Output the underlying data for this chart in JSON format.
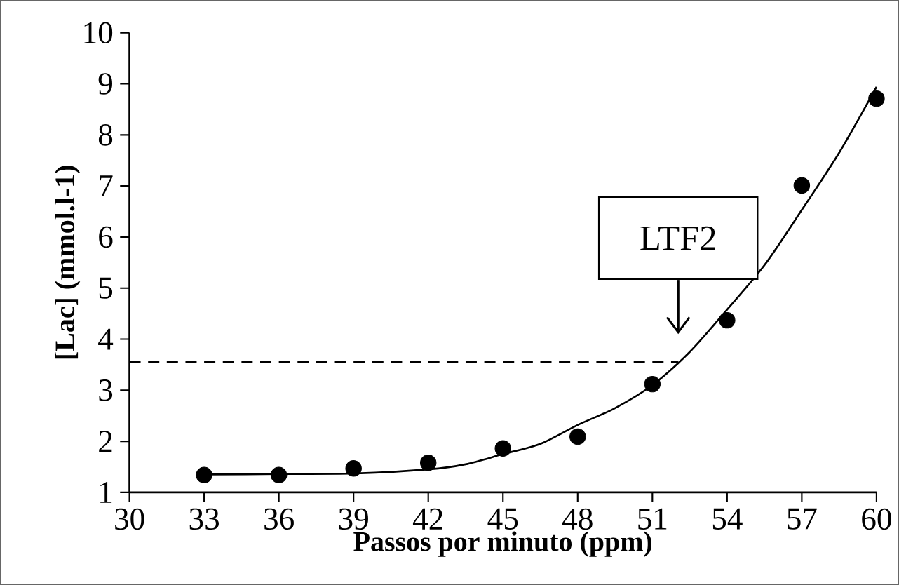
{
  "chart_data": {
    "type": "scatter",
    "xlabel": "Passos por minuto (ppm)",
    "ylabel": "[Lac] (mmol.l-1)",
    "xlim": [
      30,
      60
    ],
    "ylim": [
      1,
      10
    ],
    "xticks": [
      30,
      33,
      36,
      39,
      42,
      45,
      48,
      51,
      54,
      57,
      60
    ],
    "yticks": [
      1,
      2,
      3,
      4,
      5,
      6,
      7,
      8,
      9,
      10
    ],
    "grid": false,
    "marker": "circle",
    "series": [
      {
        "color": "#000000",
        "x": [
          33,
          36,
          39,
          42,
          45,
          48,
          51,
          54,
          57,
          60
        ],
        "values": [
          1.34,
          1.34,
          1.47,
          1.58,
          1.86,
          2.09,
          3.12,
          4.37,
          7.01,
          8.71
        ]
      },
      {
        "type": "line",
        "color": "#000000",
        "marker": "none",
        "line_style": "solid",
        "x": [
          33,
          36,
          39,
          42,
          43.5,
          45,
          46.5,
          48,
          49.5,
          51,
          52.5,
          54,
          55.5,
          57,
          58.5,
          60
        ],
        "values": [
          1.35,
          1.36,
          1.37,
          1.45,
          1.55,
          1.75,
          1.95,
          2.32,
          2.65,
          3.1,
          3.75,
          4.58,
          5.45,
          6.53,
          7.65,
          8.94
        ]
      }
    ],
    "ref_lines": [
      {
        "axis": "y",
        "value": 3.55,
        "line_style": "dashed",
        "color": "#000000"
      }
    ],
    "annotations": [
      "LTF2"
    ]
  }
}
